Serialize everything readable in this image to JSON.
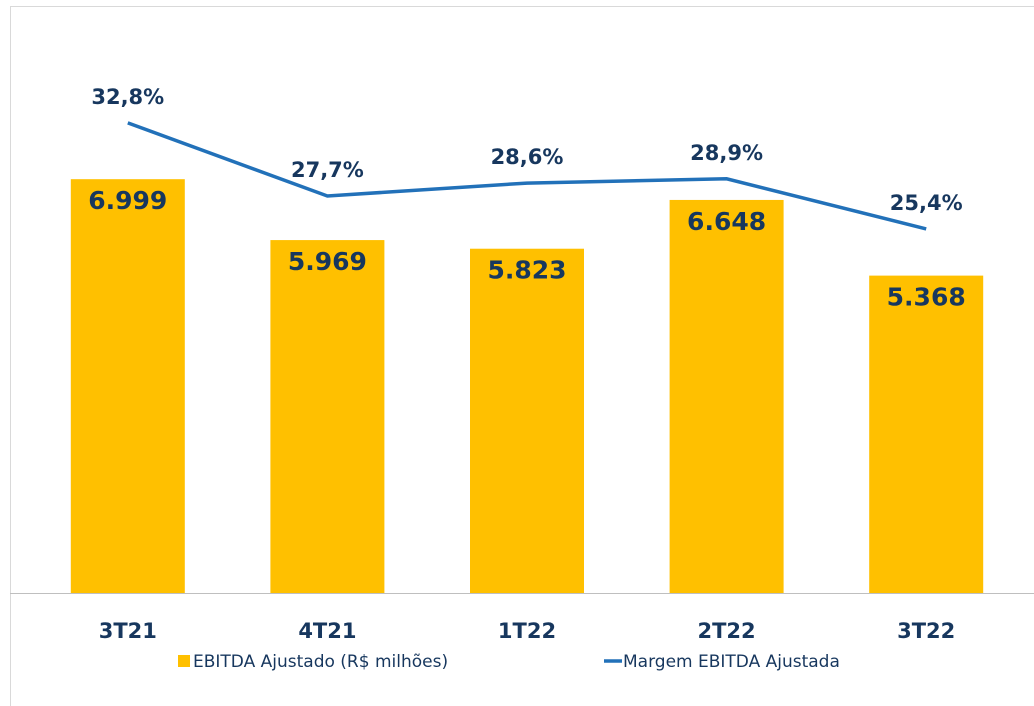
{
  "chart_data": {
    "type": "combo",
    "categories": [
      "3T21",
      "4T21",
      "1T22",
      "2T22",
      "3T22"
    ],
    "series": [
      {
        "name": "EBITDA Ajustado (R$ milhões)",
        "type": "bar",
        "color": "#ffc000",
        "values": [
          6999,
          5969,
          5823,
          6648,
          5368
        ],
        "value_labels": [
          "6.999",
          "5.969",
          "5.823",
          "6.648",
          "5.368"
        ]
      },
      {
        "name": "Margem EBITDA Ajustada",
        "type": "line",
        "axis": "y2",
        "color": "#2271b9",
        "values": [
          32.8,
          27.7,
          28.6,
          28.9,
          25.4
        ],
        "value_labels": [
          "32,8%",
          "27,7%",
          "28,6%",
          "28,9%",
          "25,4%"
        ]
      }
    ],
    "ylim": [
      0,
      8000
    ],
    "y2lim": [
      0,
      33
    ],
    "grid": false,
    "legend": "bottom"
  }
}
